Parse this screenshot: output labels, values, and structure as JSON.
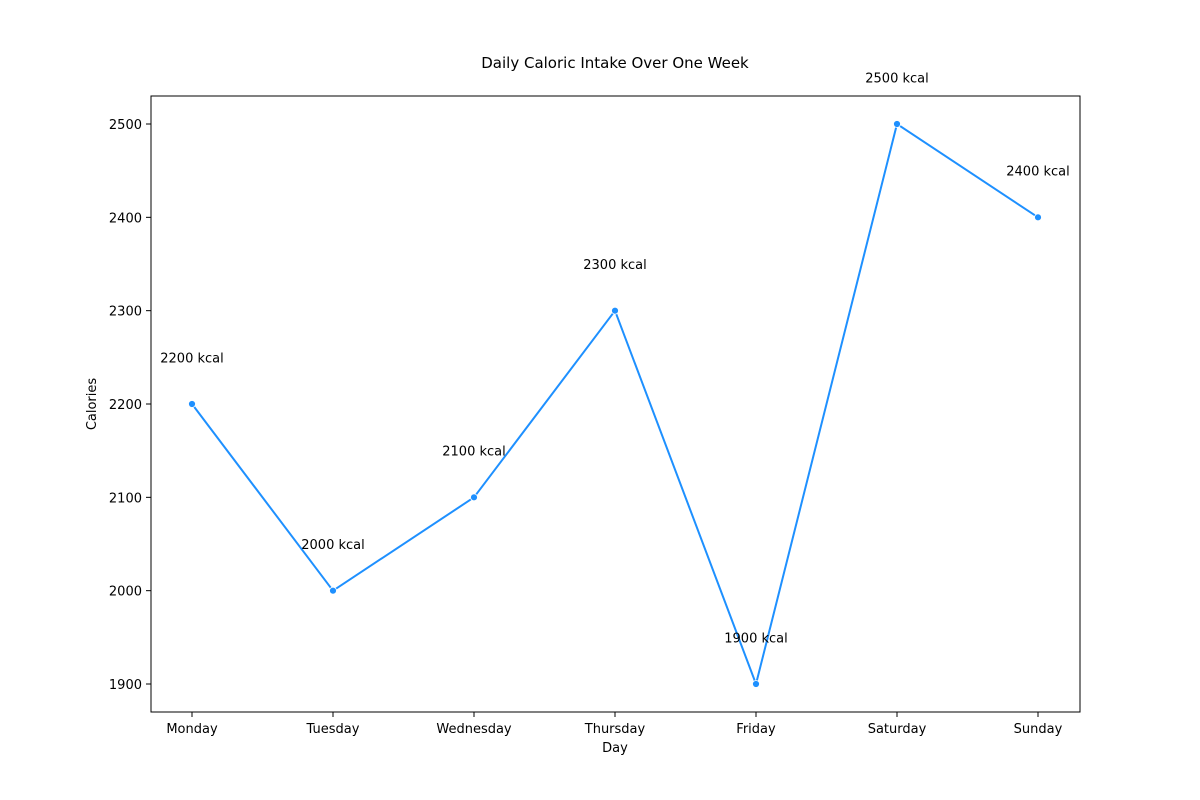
{
  "chart_data": {
    "type": "line",
    "title": "Daily Caloric Intake Over One Week",
    "xlabel": "Day",
    "ylabel": "Calories",
    "categories": [
      "Monday",
      "Tuesday",
      "Wednesday",
      "Thursday",
      "Friday",
      "Saturday",
      "Sunday"
    ],
    "series": [
      {
        "values": [
          2200,
          2000,
          2100,
          2300,
          1900,
          2500,
          2400
        ],
        "color": "#1e90ff"
      }
    ],
    "data_labels": [
      "2200 kcal",
      "2000 kcal",
      "2100 kcal",
      "2300 kcal",
      "1900 kcal",
      "2500 kcal",
      "2400 kcal"
    ],
    "yticks": [
      1900,
      2000,
      2100,
      2200,
      2300,
      2400,
      2500
    ],
    "ylim": [
      1870,
      2530
    ],
    "grid": false,
    "legend": "none"
  }
}
